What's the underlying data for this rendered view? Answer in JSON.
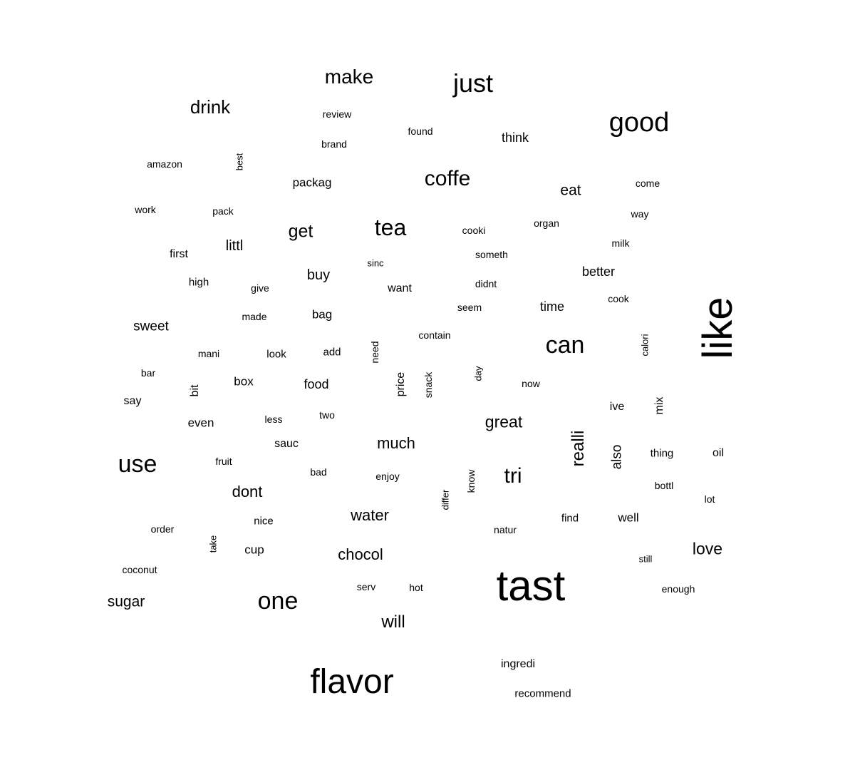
{
  "wordcloud": {
    "words": [
      {
        "text": "tast"
      },
      {
        "text": "like"
      },
      {
        "text": "flavor"
      },
      {
        "text": "good"
      },
      {
        "text": "just"
      },
      {
        "text": "one"
      },
      {
        "text": "use"
      },
      {
        "text": "can"
      },
      {
        "text": "coffe"
      },
      {
        "text": "tea"
      },
      {
        "text": "make"
      },
      {
        "text": "drink"
      },
      {
        "text": "tri"
      },
      {
        "text": "realli"
      },
      {
        "text": "get"
      },
      {
        "text": "great"
      },
      {
        "text": "much"
      },
      {
        "text": "chocol"
      },
      {
        "text": "water"
      },
      {
        "text": "will"
      },
      {
        "text": "love"
      },
      {
        "text": "dont"
      },
      {
        "text": "eat"
      },
      {
        "text": "buy"
      },
      {
        "text": "sugar"
      },
      {
        "text": "sweet"
      },
      {
        "text": "better"
      },
      {
        "text": "littl"
      },
      {
        "text": "think"
      },
      {
        "text": "also"
      },
      {
        "text": "time"
      },
      {
        "text": "packag"
      },
      {
        "text": "food"
      },
      {
        "text": "bag"
      },
      {
        "text": "box"
      },
      {
        "text": "even"
      },
      {
        "text": "cup"
      },
      {
        "text": "well"
      },
      {
        "text": "ingredi"
      },
      {
        "text": "oil"
      },
      {
        "text": "price"
      },
      {
        "text": "first"
      },
      {
        "text": "want"
      },
      {
        "text": "say"
      },
      {
        "text": "sauc"
      },
      {
        "text": "ive"
      },
      {
        "text": "mix"
      },
      {
        "text": "bit"
      },
      {
        "text": "find"
      },
      {
        "text": "recommend"
      },
      {
        "text": "review"
      },
      {
        "text": "brand"
      },
      {
        "text": "found"
      },
      {
        "text": "amazon"
      },
      {
        "text": "best"
      },
      {
        "text": "come"
      },
      {
        "text": "way"
      },
      {
        "text": "work"
      },
      {
        "text": "pack"
      },
      {
        "text": "organ"
      },
      {
        "text": "cooki"
      },
      {
        "text": "milk"
      },
      {
        "text": "someth"
      },
      {
        "text": "sinc"
      },
      {
        "text": "high"
      },
      {
        "text": "give"
      },
      {
        "text": "didnt"
      },
      {
        "text": "seem"
      },
      {
        "text": "cook"
      },
      {
        "text": "made"
      },
      {
        "text": "contain"
      },
      {
        "text": "calori"
      },
      {
        "text": "mani"
      },
      {
        "text": "look"
      },
      {
        "text": "add"
      },
      {
        "text": "need"
      },
      {
        "text": "bar"
      },
      {
        "text": "snack"
      },
      {
        "text": "day"
      },
      {
        "text": "now"
      },
      {
        "text": "less"
      },
      {
        "text": "two"
      },
      {
        "text": "fruit"
      },
      {
        "text": "thing"
      },
      {
        "text": "bad"
      },
      {
        "text": "enjoy"
      },
      {
        "text": "know"
      },
      {
        "text": "bottl"
      },
      {
        "text": "differ"
      },
      {
        "text": "lot"
      },
      {
        "text": "order"
      },
      {
        "text": "nice"
      },
      {
        "text": "natur"
      },
      {
        "text": "take"
      },
      {
        "text": "still"
      },
      {
        "text": "coconut"
      },
      {
        "text": "serv"
      },
      {
        "text": "hot"
      },
      {
        "text": "enough"
      }
    ]
  }
}
